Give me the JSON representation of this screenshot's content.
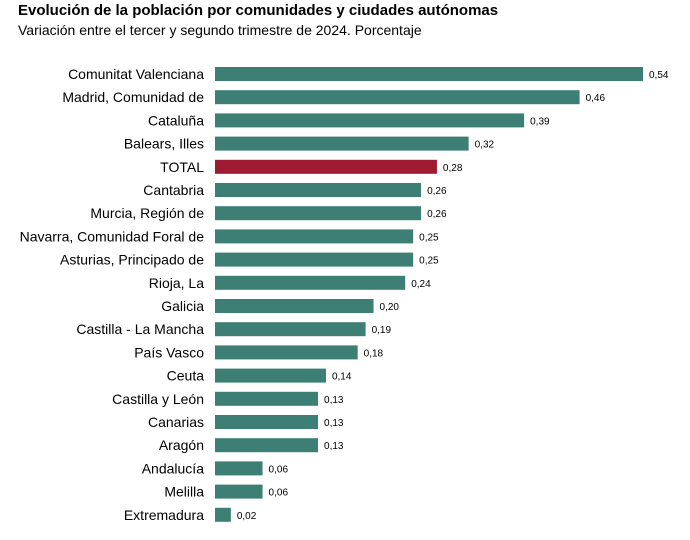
{
  "chart_data": {
    "type": "bar",
    "orientation": "horizontal",
    "title": "Evolución de la población por comunidades y ciudades autónomas",
    "subtitle": "Variación entre el tercer y segundo trimestre de 2024. Porcentaje",
    "categories": [
      "Comunitat Valenciana",
      "Madrid, Comunidad de",
      "Cataluña",
      "Balears, Illes",
      "TOTAL",
      "Cantabria",
      "Murcia, Región de",
      "Navarra, Comunidad Foral de",
      "Asturias, Principado de",
      "Rioja, La",
      "Galicia",
      "Castilla - La Mancha",
      "País Vasco",
      "Ceuta",
      "Castilla y León",
      "Canarias",
      "Aragón",
      "Andalucía",
      "Melilla",
      "Extremadura"
    ],
    "values": [
      0.54,
      0.46,
      0.39,
      0.32,
      0.28,
      0.26,
      0.26,
      0.25,
      0.25,
      0.24,
      0.2,
      0.19,
      0.18,
      0.14,
      0.13,
      0.13,
      0.13,
      0.06,
      0.06,
      0.02
    ],
    "value_labels": [
      "0,54",
      "0,46",
      "0,39",
      "0,32",
      "0,28",
      "0,26",
      "0,26",
      "0,25",
      "0,25",
      "0,24",
      "0,20",
      "0,19",
      "0,18",
      "0,14",
      "0,13",
      "0,13",
      "0,13",
      "0,06",
      "0,06",
      "0,02"
    ],
    "highlight_category": "TOTAL",
    "colors": {
      "bar": "#3d7f74",
      "highlight": "#9e1b32"
    },
    "xlim": [
      0,
      0.54
    ],
    "grid": false,
    "legend": "none"
  }
}
